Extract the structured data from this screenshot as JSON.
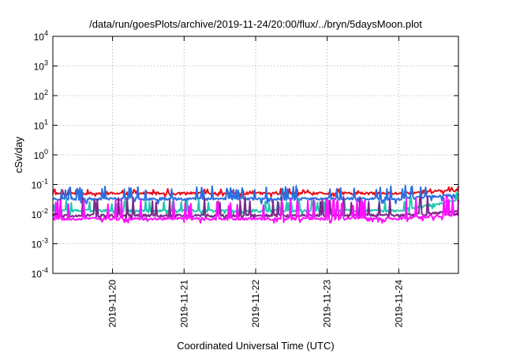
{
  "chart_data": {
    "type": "line",
    "title": "/data/run/goesPlots/archive/2019-11-24/20:00/flux/../bryn/5daysMoon.plot",
    "xlabel": "Coordinated Universal Time (UTC)",
    "ylabel": "cSv/day",
    "yscale": "log",
    "ylim": [
      0.0001,
      10000
    ],
    "xlim": [
      "2019-11-19T04:00",
      "2019-11-24T20:00"
    ],
    "grid": true,
    "legend": "none",
    "y_ticks": [
      {
        "base": "10",
        "exp": "-4",
        "value": 0.0001
      },
      {
        "base": "10",
        "exp": "-3",
        "value": 0.001
      },
      {
        "base": "10",
        "exp": "-2",
        "value": 0.01
      },
      {
        "base": "10",
        "exp": "-1",
        "value": 0.1
      },
      {
        "base": "10",
        "exp": "0",
        "value": 1
      },
      {
        "base": "10",
        "exp": "1",
        "value": 10
      },
      {
        "base": "10",
        "exp": "2",
        "value": 100
      },
      {
        "base": "10",
        "exp": "3",
        "value": 1000
      },
      {
        "base": "10",
        "exp": "4",
        "value": 10000
      }
    ],
    "x_ticks": [
      {
        "label": "2019-11-20",
        "value": "2019-11-20T00:00"
      },
      {
        "label": "2019-11-21",
        "value": "2019-11-21T00:00"
      },
      {
        "label": "2019-11-22",
        "value": "2019-11-22T00:00"
      },
      {
        "label": "2019-11-23",
        "value": "2019-11-23T00:00"
      },
      {
        "label": "2019-11-24",
        "value": "2019-11-24T00:00"
      }
    ],
    "series": [
      {
        "color": "#e8101a",
        "base": 0.05,
        "spike": 1.35,
        "dip": 0.82,
        "seed": 11,
        "x": [
          "2019-11-19T04:00",
          "2019-11-20T00:00",
          "2019-11-21T00:00",
          "2019-11-22T00:00",
          "2019-11-23T00:00",
          "2019-11-24T00:00",
          "2019-11-24T20:00"
        ],
        "values": [
          0.05,
          0.05,
          0.05,
          0.05,
          0.05,
          0.05,
          0.065
        ]
      },
      {
        "color": "#2a6fe0",
        "base": 0.033,
        "spike": 2.6,
        "dip": 0.75,
        "seed": 23,
        "x": [
          "2019-11-19T04:00",
          "2019-11-20T00:00",
          "2019-11-21T00:00",
          "2019-11-22T00:00",
          "2019-11-23T00:00",
          "2019-11-24T00:00",
          "2019-11-24T20:00"
        ],
        "values": [
          0.033,
          0.033,
          0.033,
          0.033,
          0.033,
          0.033,
          0.045
        ]
      },
      {
        "color": "#20c8b0",
        "base": 0.013,
        "spike": 2.4,
        "dip": 0.8,
        "seed": 37,
        "x": [
          "2019-11-19T04:00",
          "2019-11-20T00:00",
          "2019-11-21T00:00",
          "2019-11-22T00:00",
          "2019-11-23T00:00",
          "2019-11-24T00:00",
          "2019-11-24T20:00"
        ],
        "values": [
          0.013,
          0.013,
          0.013,
          0.013,
          0.013,
          0.013,
          0.03
        ]
      },
      {
        "color": "#7a2a8a",
        "base": 0.009,
        "spike": 4.2,
        "dip": 0.8,
        "seed": 51,
        "x": [
          "2019-11-19T04:00",
          "2019-11-20T00:00",
          "2019-11-21T00:00",
          "2019-11-22T00:00",
          "2019-11-23T00:00",
          "2019-11-24T00:00",
          "2019-11-24T20:00"
        ],
        "values": [
          0.009,
          0.009,
          0.009,
          0.009,
          0.009,
          0.009,
          0.012
        ]
      },
      {
        "color": "#ff10ff",
        "base": 0.007,
        "spike": 4.5,
        "dip": 0.8,
        "seed": 67,
        "x": [
          "2019-11-19T04:00",
          "2019-11-20T00:00",
          "2019-11-21T00:00",
          "2019-11-22T00:00",
          "2019-11-23T00:00",
          "2019-11-24T00:00",
          "2019-11-24T20:00"
        ],
        "values": [
          0.007,
          0.007,
          0.007,
          0.007,
          0.007,
          0.007,
          0.01
        ]
      }
    ]
  }
}
